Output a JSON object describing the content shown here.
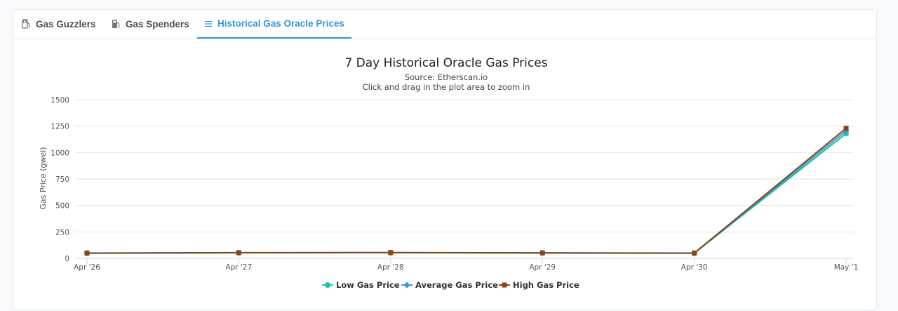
{
  "tabs": [
    {
      "label": "Gas Guzzlers",
      "icon": "gas-pump-icon"
    },
    {
      "label": "Gas Spenders",
      "icon": "gas-station-icon"
    },
    {
      "label": "Historical Gas Oracle Prices",
      "icon": "list-icon",
      "active": true
    }
  ],
  "colors": {
    "accent": "#3498db",
    "low": "#1cc3a4",
    "average": "#3498db",
    "high": "#8b4513"
  },
  "chart_data": {
    "type": "line",
    "title": "7 Day Historical Oracle Gas Prices",
    "subtitle": "Source: Etherscan.io",
    "subtitle2": "Click and drag in the plot area to zoom in",
    "ylabel": "Gas Price (gwei)",
    "xlabel": "",
    "categories": [
      "Apr '26",
      "Apr '27",
      "Apr '28",
      "Apr '29",
      "Apr '30",
      "May '1"
    ],
    "ylim": [
      0,
      1500
    ],
    "yticks": [
      "0",
      "250",
      "500",
      "750",
      "1000",
      "1250",
      "1500"
    ],
    "grid": true,
    "legend_position": "bottom",
    "series": [
      {
        "name": "Low Gas Price",
        "marker": "circle",
        "values": [
          48,
          52,
          53,
          50,
          48,
          1180
        ]
      },
      {
        "name": "Average Gas Price",
        "marker": "diamond",
        "values": [
          49,
          53,
          54,
          51,
          49,
          1205
        ]
      },
      {
        "name": "High Gas Price",
        "marker": "square",
        "values": [
          50,
          54,
          55,
          52,
          50,
          1230
        ]
      }
    ]
  }
}
